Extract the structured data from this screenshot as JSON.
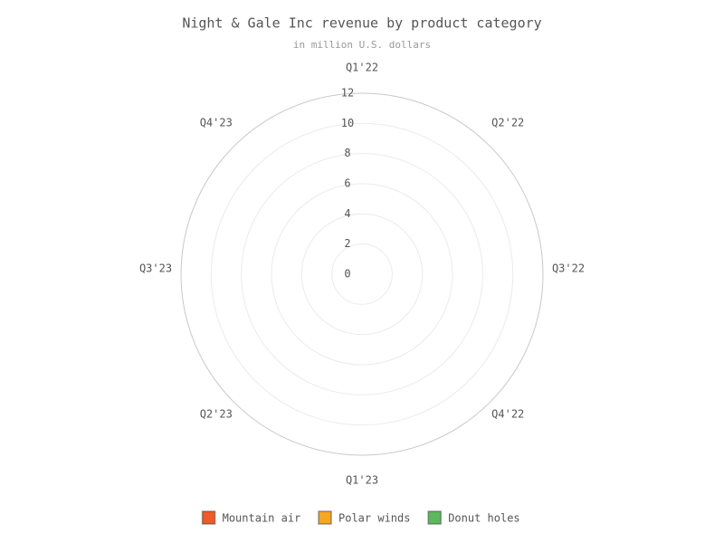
{
  "chart_data": {
    "type": "radar",
    "title": "Night & Gale Inc revenue by product category",
    "subtitle": "in million U.S. dollars",
    "categories": [
      "Q1'22",
      "Q2'22",
      "Q3'22",
      "Q4'22",
      "Q1'23",
      "Q2'23",
      "Q3'23",
      "Q4'23"
    ],
    "series": [
      {
        "name": "Mountain air",
        "color": "#f05a28",
        "values": [
          null,
          null,
          null,
          null,
          null,
          null,
          null,
          null
        ]
      },
      {
        "name": "Polar winds",
        "color": "#f5a623",
        "values": [
          null,
          null,
          null,
          null,
          null,
          null,
          null,
          null
        ]
      },
      {
        "name": "Donut holes",
        "color": "#5cb85c",
        "values": [
          null,
          null,
          null,
          null,
          null,
          null,
          null,
          null
        ]
      }
    ],
    "ylim": [
      0,
      12
    ],
    "yticks": [
      0,
      2,
      4,
      6,
      8,
      10,
      12
    ],
    "grid": true,
    "legend": "bottom"
  }
}
